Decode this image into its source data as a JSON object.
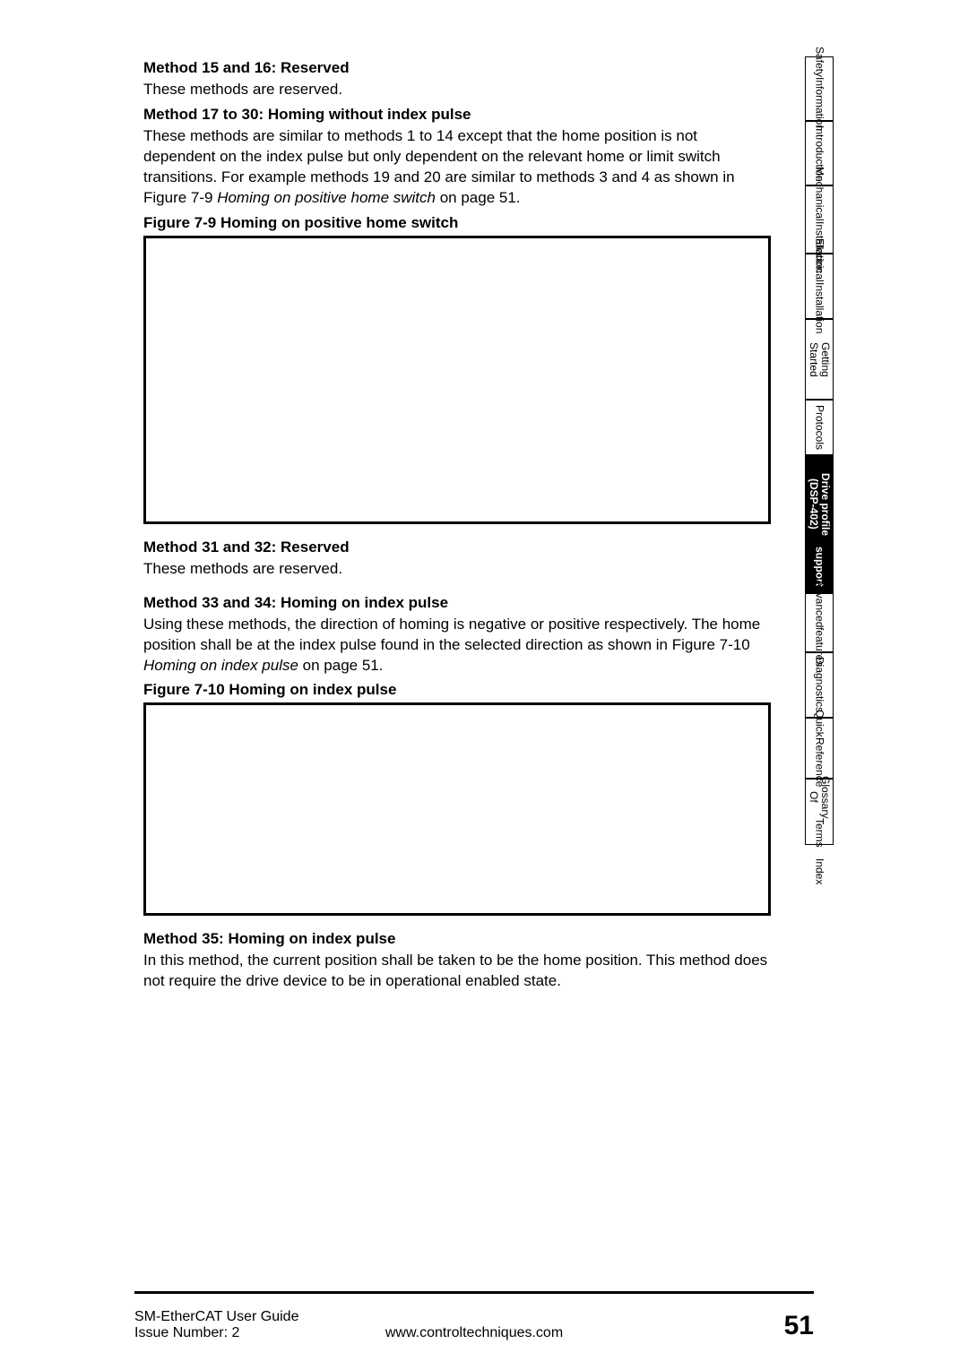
{
  "sections": {
    "m15_16_title": "Method 15 and 16: Reserved",
    "m15_16_body": "These methods are reserved.",
    "m17_30_title": "Method 17 to 30: Homing without index pulse",
    "m17_30_body_1": "These methods are similar to methods 1 to 14 except that the home position is not dependent on the index pulse but only dependent on the relevant home or limit switch transitions. For example methods 19 and 20 are similar to methods 3 and 4 as shown in Figure 7-9 ",
    "m17_30_body_italic": "Homing on positive home switch",
    "m17_30_body_2": " on page 51.",
    "fig79_caption": "Figure 7-9  Homing on positive home switch",
    "m31_32_title": "Method 31 and 32: Reserved",
    "m31_32_body": "These methods are reserved.",
    "m33_34_title": "Method 33 and 34: Homing on index pulse",
    "m33_34_body_1": "Using these methods, the direction of homing is negative or positive respectively. The home position shall be at the index pulse found in the selected direction as shown in Figure 7-10 ",
    "m33_34_body_italic": "Homing on index pulse",
    "m33_34_body_2": " on page 51.",
    "fig710_caption": "Figure 7-10  Homing on index pulse",
    "m35_title": "Method 35: Homing on index pulse",
    "m35_body": "In this method, the current position shall be taken to be the home position. This method does not require the drive device to be in operational enabled state."
  },
  "tabs": {
    "t1a": "Safety",
    "t1b": "Information",
    "t2": "Introduction",
    "t3a": "Mechanical",
    "t3b": "Installation",
    "t4a": "Electrical",
    "t4b": "Installation",
    "t5": "Getting Started",
    "t6": "Protocols",
    "t7a": "Drive profile (DSP-402)",
    "t7b": "support",
    "t8a": "Advanced",
    "t8b": "features",
    "t9": "Diagnostics",
    "t10a": "Quick",
    "t10b": "Reference",
    "t11a": "Glossary Of",
    "t11b": "Terms",
    "t12": "Index"
  },
  "footer": {
    "guide": "SM-EtherCAT User Guide",
    "issue": "Issue Number:  2",
    "url": "www.controltechniques.com",
    "page": "51"
  },
  "tab_heights": {
    "t1": 72,
    "t2": 72,
    "t3": 76,
    "t4": 73,
    "t5": 90,
    "t6": 62,
    "t7": 154,
    "t8": 66,
    "t9": 73,
    "t10": 68,
    "t11": 74,
    "t12": 40
  }
}
